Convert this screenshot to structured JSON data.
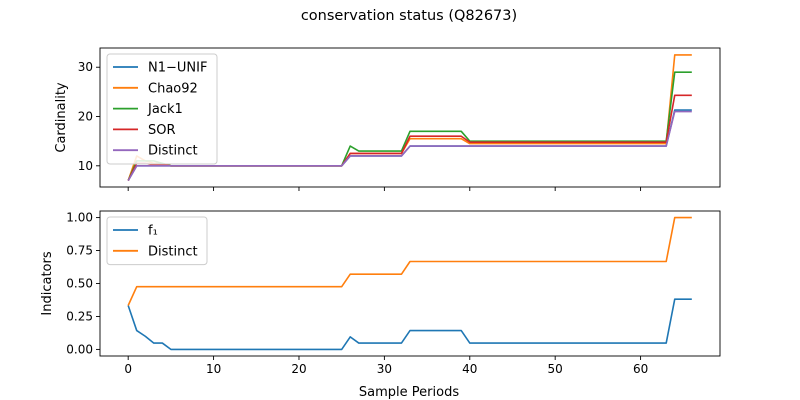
{
  "figure": {
    "title": "conservation status (Q82673)",
    "xlabel": "Sample Periods"
  },
  "colors": {
    "blue": "#1f77b4",
    "orange": "#ff7f0e",
    "green": "#2ca02c",
    "red": "#d62728",
    "purple": "#9467bd"
  },
  "chart_data": [
    {
      "type": "line",
      "ylabel": "Cardinality",
      "xlim": [
        -3.3,
        69.3
      ],
      "ylim": [
        5.7,
        33.9
      ],
      "xticks": [
        0,
        10,
        20,
        30,
        40,
        50,
        60
      ],
      "yticks": [
        10,
        20,
        30
      ],
      "show_xticklabels": false,
      "legend": "upper left",
      "series": [
        {
          "name": "N1−UNIF",
          "color": "#1f77b4",
          "x": [
            0,
            1,
            2,
            3,
            4,
            5,
            25,
            26,
            27,
            32,
            33,
            39,
            40,
            63,
            64,
            66
          ],
          "y": [
            7,
            10,
            10,
            10,
            10,
            10,
            10,
            12,
            12,
            12,
            14,
            14,
            14,
            14,
            21.3,
            21.3
          ]
        },
        {
          "name": "Chao92",
          "color": "#ff7f0e",
          "x": [
            0,
            1,
            2,
            3,
            4,
            5,
            25,
            26,
            27,
            32,
            33,
            39,
            40,
            63,
            64,
            66
          ],
          "y": [
            7,
            12,
            11,
            10.5,
            10.5,
            10,
            10,
            12.5,
            12.5,
            12.5,
            15.5,
            15.5,
            14.5,
            14.5,
            32.5,
            32.5
          ]
        },
        {
          "name": "Jack1",
          "color": "#2ca02c",
          "x": [
            0,
            1,
            2,
            3,
            4,
            5,
            25,
            26,
            27,
            32,
            33,
            39,
            40,
            63,
            64,
            66
          ],
          "y": [
            7,
            11,
            11,
            11,
            10.5,
            10,
            10,
            14,
            13,
            13,
            17,
            17,
            15,
            15,
            29,
            29
          ]
        },
        {
          "name": "SOR",
          "color": "#d62728",
          "x": [
            0,
            1,
            2,
            3,
            4,
            5,
            25,
            26,
            27,
            32,
            33,
            39,
            40,
            63,
            64,
            66
          ],
          "y": [
            7,
            10.5,
            10.5,
            10.2,
            10.2,
            10,
            10,
            12.5,
            12.5,
            12.5,
            16,
            16,
            14.8,
            14.8,
            24.3,
            24.3
          ]
        },
        {
          "name": "Distinct",
          "color": "#9467bd",
          "x": [
            0,
            1,
            2,
            3,
            4,
            5,
            25,
            26,
            27,
            32,
            33,
            39,
            40,
            63,
            64,
            66
          ],
          "y": [
            7,
            10,
            10,
            10,
            10,
            10,
            10,
            12,
            12,
            12,
            14,
            14,
            14,
            14,
            21,
            21
          ]
        }
      ]
    },
    {
      "type": "line",
      "ylabel": "Indicators",
      "xlim": [
        -3.3,
        69.3
      ],
      "ylim": [
        -0.05,
        1.05
      ],
      "xticks": [
        0,
        10,
        20,
        30,
        40,
        50,
        60
      ],
      "yticks": [
        0.0,
        0.25,
        0.5,
        0.75,
        1.0
      ],
      "ytick_labels": [
        "0.00",
        "0.25",
        "0.50",
        "0.75",
        "1.00"
      ],
      "show_xticklabels": true,
      "legend": "upper left",
      "series": [
        {
          "name": "f₁",
          "color": "#1f77b4",
          "x": [
            0,
            1,
            2,
            3,
            4,
            5,
            25,
            26,
            27,
            32,
            33,
            39,
            40,
            63,
            64,
            66
          ],
          "y": [
            0.333,
            0.143,
            0.1,
            0.048,
            0.048,
            0.0,
            0.0,
            0.095,
            0.048,
            0.048,
            0.143,
            0.143,
            0.048,
            0.048,
            0.381,
            0.381
          ]
        },
        {
          "name": "Distinct",
          "color": "#ff7f0e",
          "x": [
            0,
            1,
            2,
            3,
            4,
            5,
            25,
            26,
            27,
            32,
            33,
            39,
            40,
            63,
            64,
            66
          ],
          "y": [
            0.333,
            0.476,
            0.476,
            0.476,
            0.476,
            0.476,
            0.476,
            0.571,
            0.571,
            0.571,
            0.667,
            0.667,
            0.667,
            0.667,
            1.0,
            1.0
          ]
        }
      ]
    }
  ]
}
